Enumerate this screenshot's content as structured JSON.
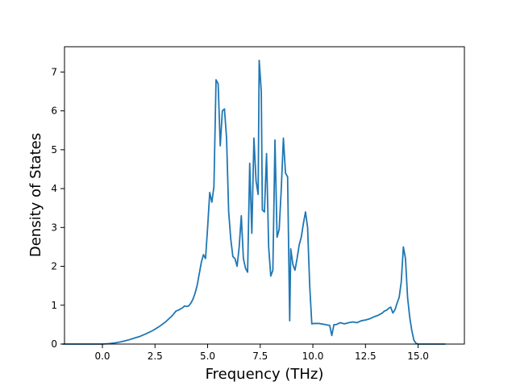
{
  "chart_data": {
    "type": "line",
    "title": "",
    "xlabel": "Frequency (THz)",
    "ylabel": "Density of States",
    "xlim": [
      -1.8,
      17.2
    ],
    "ylim": [
      0,
      7.65
    ],
    "xticks": [
      0.0,
      2.5,
      5.0,
      7.5,
      10.0,
      12.5,
      15.0
    ],
    "xtick_labels": [
      "0.0",
      "2.5",
      "5.0",
      "7.5",
      "10.0",
      "12.5",
      "15.0"
    ],
    "yticks": [
      0,
      1,
      2,
      3,
      4,
      5,
      6,
      7
    ],
    "ytick_labels": [
      "0",
      "1",
      "2",
      "3",
      "4",
      "5",
      "6",
      "7"
    ],
    "grid": false,
    "legend": "none",
    "series": [
      {
        "color": "#1f77b4",
        "x": [
          -1.9,
          -1.0,
          -0.5,
          0.0,
          0.3,
          0.6,
          0.9,
          1.2,
          1.5,
          1.8,
          2.1,
          2.4,
          2.7,
          3.0,
          3.3,
          3.5,
          3.6,
          3.7,
          3.8,
          3.9,
          4.0,
          4.1,
          4.2,
          4.3,
          4.4,
          4.5,
          4.6,
          4.7,
          4.8,
          4.9,
          5.0,
          5.1,
          5.2,
          5.3,
          5.4,
          5.5,
          5.6,
          5.7,
          5.8,
          5.9,
          6.0,
          6.1,
          6.2,
          6.3,
          6.4,
          6.5,
          6.6,
          6.7,
          6.8,
          6.9,
          7.0,
          7.1,
          7.2,
          7.3,
          7.4,
          7.45,
          7.55,
          7.6,
          7.7,
          7.8,
          7.9,
          8.0,
          8.1,
          8.2,
          8.3,
          8.4,
          8.5,
          8.6,
          8.7,
          8.8,
          8.9,
          8.95,
          9.05,
          9.15,
          9.25,
          9.35,
          9.45,
          9.55,
          9.65,
          9.75,
          9.85,
          9.95,
          10.05,
          10.3,
          10.6,
          10.8,
          10.9,
          11.0,
          11.1,
          11.3,
          11.5,
          11.7,
          11.9,
          12.1,
          12.3,
          12.5,
          12.7,
          12.9,
          13.1,
          13.3,
          13.4,
          13.5,
          13.6,
          13.7,
          13.8,
          13.9,
          14.0,
          14.1,
          14.2,
          14.3,
          14.4,
          14.5,
          14.6,
          14.7,
          14.8,
          14.9,
          15.0,
          15.2,
          15.5,
          16.0,
          16.3
        ],
        "y": [
          0,
          0,
          0,
          0,
          0.01,
          0.03,
          0.06,
          0.1,
          0.15,
          0.2,
          0.27,
          0.35,
          0.45,
          0.57,
          0.72,
          0.85,
          0.87,
          0.9,
          0.93,
          0.98,
          0.97,
          0.98,
          1.05,
          1.15,
          1.3,
          1.5,
          1.8,
          2.1,
          2.3,
          2.2,
          3.0,
          3.9,
          3.65,
          4.05,
          6.8,
          6.7,
          5.1,
          6.0,
          6.05,
          5.3,
          3.4,
          2.7,
          2.25,
          2.2,
          2.0,
          2.5,
          3.3,
          2.2,
          1.95,
          1.85,
          4.65,
          2.85,
          5.3,
          4.2,
          3.85,
          7.3,
          6.5,
          3.45,
          3.4,
          4.9,
          2.5,
          1.75,
          1.9,
          5.25,
          2.75,
          2.95,
          4.0,
          5.3,
          4.4,
          4.3,
          0.6,
          2.45,
          2.05,
          1.9,
          2.2,
          2.55,
          2.75,
          3.1,
          3.4,
          3.0,
          1.5,
          0.52,
          0.53,
          0.53,
          0.5,
          0.48,
          0.22,
          0.5,
          0.5,
          0.55,
          0.52,
          0.55,
          0.57,
          0.55,
          0.6,
          0.62,
          0.65,
          0.7,
          0.74,
          0.8,
          0.85,
          0.87,
          0.92,
          0.95,
          0.8,
          0.88,
          1.05,
          1.2,
          1.6,
          2.5,
          2.2,
          1.2,
          0.7,
          0.35,
          0.1,
          0.02,
          0,
          0,
          0,
          0,
          0
        ]
      }
    ]
  }
}
